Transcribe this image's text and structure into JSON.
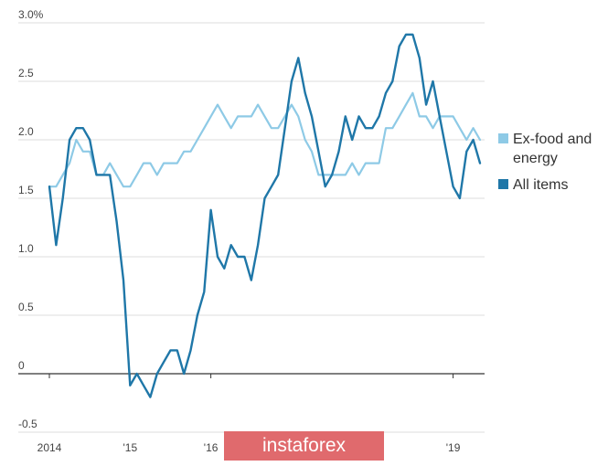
{
  "chart_data": {
    "type": "line",
    "title": "",
    "xlabel": "",
    "ylabel": "",
    "ylim": [
      -0.5,
      3.0
    ],
    "yticks": [
      {
        "value": 3.0,
        "label": "3.0%"
      },
      {
        "value": 2.5,
        "label": "2.5"
      },
      {
        "value": 2.0,
        "label": "2.0"
      },
      {
        "value": 1.5,
        "label": "1.5"
      },
      {
        "value": 1.0,
        "label": "1.0"
      },
      {
        "value": 0.5,
        "label": "0.5"
      },
      {
        "value": 0,
        "label": "0"
      },
      {
        "value": -0.5,
        "label": "-0.5"
      }
    ],
    "xticks": [
      {
        "value": "2014-01",
        "label": "2014"
      },
      {
        "value": "2015-01",
        "label": "'15"
      },
      {
        "value": "2016-01",
        "label": "'16"
      },
      {
        "value": "2019-01",
        "label": "'19"
      }
    ],
    "x": [
      "2014-01",
      "2014-02",
      "2014-03",
      "2014-04",
      "2014-05",
      "2014-06",
      "2014-07",
      "2014-08",
      "2014-09",
      "2014-10",
      "2014-11",
      "2014-12",
      "2015-01",
      "2015-02",
      "2015-03",
      "2015-04",
      "2015-05",
      "2015-06",
      "2015-07",
      "2015-08",
      "2015-09",
      "2015-10",
      "2015-11",
      "2015-12",
      "2016-01",
      "2016-02",
      "2016-03",
      "2016-04",
      "2016-05",
      "2016-06",
      "2016-07",
      "2016-08",
      "2016-09",
      "2016-10",
      "2016-11",
      "2016-12",
      "2017-01",
      "2017-02",
      "2017-03",
      "2017-04",
      "2017-05",
      "2017-06",
      "2017-07",
      "2017-08",
      "2017-09",
      "2017-10",
      "2017-11",
      "2017-12",
      "2018-01",
      "2018-02",
      "2018-03",
      "2018-04",
      "2018-05",
      "2018-06",
      "2018-07",
      "2018-08",
      "2018-09",
      "2018-10",
      "2018-11",
      "2018-12",
      "2019-01",
      "2019-02",
      "2019-03",
      "2019-04",
      "2019-05"
    ],
    "series": [
      {
        "name": "Ex-food and energy",
        "color": "#8ecae6",
        "values": [
          1.6,
          1.6,
          1.7,
          1.8,
          2.0,
          1.9,
          1.9,
          1.7,
          1.7,
          1.8,
          1.7,
          1.6,
          1.6,
          1.7,
          1.8,
          1.8,
          1.7,
          1.8,
          1.8,
          1.8,
          1.9,
          1.9,
          2.0,
          2.1,
          2.2,
          2.3,
          2.2,
          2.1,
          2.2,
          2.2,
          2.2,
          2.3,
          2.2,
          2.1,
          2.1,
          2.2,
          2.3,
          2.2,
          2.0,
          1.9,
          1.7,
          1.7,
          1.7,
          1.7,
          1.7,
          1.8,
          1.7,
          1.8,
          1.8,
          1.8,
          2.1,
          2.1,
          2.2,
          2.3,
          2.4,
          2.2,
          2.2,
          2.1,
          2.2,
          2.2,
          2.2,
          2.1,
          2.0,
          2.1,
          2.0
        ]
      },
      {
        "name": "All items",
        "color": "#1f77a8",
        "values": [
          1.6,
          1.1,
          1.5,
          2.0,
          2.1,
          2.1,
          2.0,
          1.7,
          1.7,
          1.7,
          1.3,
          0.8,
          -0.1,
          0.0,
          -0.1,
          -0.2,
          0.0,
          0.1,
          0.2,
          0.2,
          0.0,
          0.2,
          0.5,
          0.7,
          1.4,
          1.0,
          0.9,
          1.1,
          1.0,
          1.0,
          0.8,
          1.1,
          1.5,
          1.6,
          1.7,
          2.1,
          2.5,
          2.7,
          2.4,
          2.2,
          1.9,
          1.6,
          1.7,
          1.9,
          2.2,
          2.0,
          2.2,
          2.1,
          2.1,
          2.2,
          2.4,
          2.5,
          2.8,
          2.9,
          2.9,
          2.7,
          2.3,
          2.5,
          2.2,
          1.9,
          1.6,
          1.5,
          1.9,
          2.0,
          1.8
        ]
      }
    ],
    "grid": true,
    "legend_position": "right"
  },
  "watermark": {
    "text": "instaforex"
  }
}
